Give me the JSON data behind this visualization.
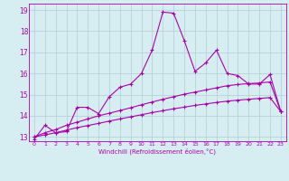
{
  "xlabel": "Windchill (Refroidissement éolien,°C)",
  "background_color": "#d6eef2",
  "grid_color": "#b0ccd4",
  "line_color": "#aa00aa",
  "xlim": [
    -0.5,
    23.5
  ],
  "ylim": [
    12.8,
    19.3
  ],
  "xticks": [
    0,
    1,
    2,
    3,
    4,
    5,
    6,
    7,
    8,
    9,
    10,
    11,
    12,
    13,
    14,
    15,
    16,
    17,
    18,
    19,
    20,
    21,
    22,
    23
  ],
  "yticks": [
    13,
    14,
    15,
    16,
    17,
    18,
    19
  ],
  "curve1_x": [
    0,
    1,
    2,
    3,
    4,
    5,
    6,
    7,
    8,
    9,
    10,
    11,
    12,
    13,
    14,
    15,
    16,
    17,
    18,
    19,
    20,
    21,
    22,
    23
  ],
  "curve1_y": [
    12.9,
    13.55,
    13.2,
    13.25,
    14.4,
    14.4,
    14.1,
    14.9,
    15.35,
    15.5,
    16.0,
    17.1,
    18.9,
    18.85,
    17.55,
    16.1,
    16.5,
    17.1,
    16.0,
    15.9,
    15.5,
    15.5,
    15.95,
    14.2
  ],
  "curve2_x": [
    0,
    1,
    2,
    3,
    4,
    5,
    6,
    7,
    8,
    9,
    10,
    11,
    12,
    13,
    14,
    15,
    16,
    17,
    18,
    19,
    20,
    21,
    22,
    23
  ],
  "curve2_y": [
    13.0,
    13.2,
    13.35,
    13.55,
    13.7,
    13.85,
    14.0,
    14.12,
    14.25,
    14.38,
    14.52,
    14.65,
    14.78,
    14.9,
    15.02,
    15.12,
    15.22,
    15.32,
    15.42,
    15.48,
    15.52,
    15.55,
    15.6,
    14.2
  ],
  "curve3_x": [
    0,
    1,
    2,
    3,
    4,
    5,
    6,
    7,
    8,
    9,
    10,
    11,
    12,
    13,
    14,
    15,
    16,
    17,
    18,
    19,
    20,
    21,
    22,
    23
  ],
  "curve3_y": [
    13.0,
    13.1,
    13.2,
    13.32,
    13.44,
    13.54,
    13.64,
    13.75,
    13.85,
    13.95,
    14.05,
    14.15,
    14.24,
    14.33,
    14.41,
    14.49,
    14.56,
    14.63,
    14.69,
    14.74,
    14.78,
    14.82,
    14.86,
    14.2
  ]
}
